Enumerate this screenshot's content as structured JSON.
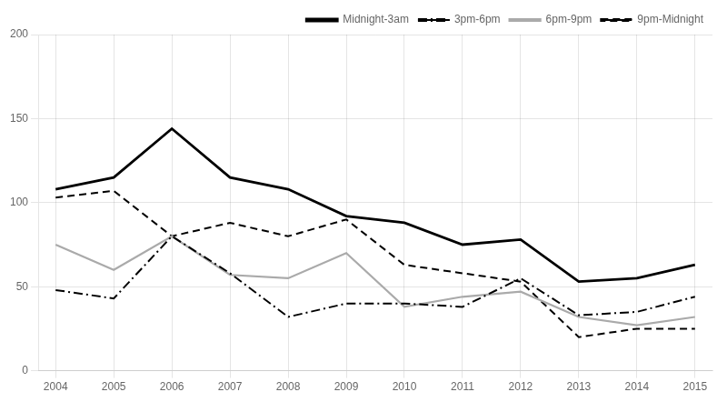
{
  "chart_data": {
    "type": "line",
    "x": [
      2004,
      2005,
      2006,
      2007,
      2008,
      2009,
      2010,
      2011,
      2012,
      2013,
      2014,
      2015
    ],
    "series": [
      {
        "name": "Midnight-3am",
        "color": "#000000",
        "line_style": "solid",
        "values": [
          108,
          115,
          144,
          115,
          108,
          92,
          88,
          75,
          78,
          53,
          55,
          63
        ]
      },
      {
        "name": "3pm-6pm",
        "color": "#000000",
        "line_style": "dashdot",
        "values": [
          48,
          43,
          80,
          58,
          32,
          40,
          40,
          38,
          55,
          33,
          35,
          44
        ]
      },
      {
        "name": "6pm-9pm",
        "color": "#aaaaaa",
        "line_style": "solid",
        "values": [
          75,
          60,
          80,
          57,
          55,
          70,
          38,
          44,
          47,
          32,
          27,
          32
        ]
      },
      {
        "name": "9pm-Midnight",
        "color": "#000000",
        "line_style": "dashed",
        "values": [
          103,
          107,
          80,
          88,
          80,
          90,
          63,
          58,
          53,
          20,
          25,
          25
        ]
      }
    ],
    "xlim": [
      2003.7,
      2015.3
    ],
    "xticks": [
      2004,
      2005,
      2006,
      2007,
      2008,
      2009,
      2010,
      2011,
      2012,
      2013,
      2014,
      2015
    ],
    "ylim": [
      0,
      200
    ],
    "yticks": [
      0,
      50,
      100,
      150,
      200
    ],
    "grid": true,
    "legend": "upper right"
  }
}
